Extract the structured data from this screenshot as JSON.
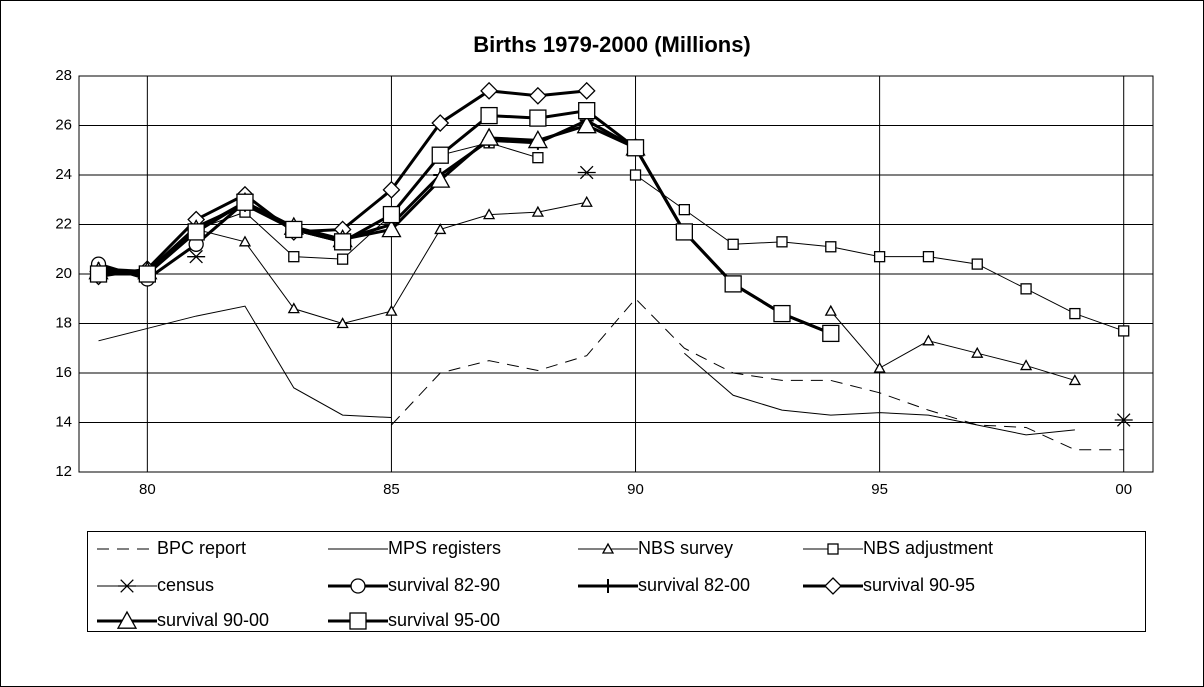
{
  "chart_data": {
    "type": "line",
    "title": "Births 1979-2000 (Millions)",
    "x": [
      1979,
      1980,
      1981,
      1982,
      1983,
      1984,
      1985,
      1986,
      1987,
      1988,
      1989,
      1990,
      1991,
      1992,
      1993,
      1994,
      1995,
      1996,
      1997,
      1998,
      1999,
      2000
    ],
    "xlim": [
      1978.6,
      2000.6
    ],
    "xticks": [
      {
        "value": 1980,
        "label": "80"
      },
      {
        "value": 1985,
        "label": "85"
      },
      {
        "value": 1990,
        "label": "90"
      },
      {
        "value": 1995,
        "label": "95"
      },
      {
        "value": 2000,
        "label": "00"
      }
    ],
    "ylim": [
      12,
      28
    ],
    "yticks": [
      12,
      14,
      16,
      18,
      20,
      22,
      24,
      26,
      28
    ],
    "grid": true,
    "series": [
      {
        "name": "BPC report",
        "color": "#000000",
        "dash": "12 8",
        "line_width": 1,
        "marker": "none",
        "marker_size": 0,
        "values": [
          null,
          null,
          null,
          null,
          null,
          null,
          13.9,
          16.0,
          16.5,
          16.1,
          16.7,
          19.0,
          17.0,
          16.0,
          15.7,
          15.7,
          15.2,
          14.5,
          13.9,
          13.8,
          12.9,
          12.9
        ]
      },
      {
        "name": "MPS registers",
        "color": "#000000",
        "dash": "none",
        "line_width": 1,
        "marker": "none",
        "marker_size": 0,
        "values": [
          17.3,
          17.8,
          18.3,
          18.7,
          15.4,
          14.3,
          14.2,
          null,
          null,
          null,
          null,
          null,
          16.8,
          15.1,
          14.5,
          14.3,
          14.4,
          14.3,
          13.9,
          13.5,
          13.7,
          null
        ]
      },
      {
        "name": "NBS survey",
        "color": "#000000",
        "dash": "none",
        "line_width": 1,
        "marker": "triangle",
        "marker_size": 5,
        "values": [
          20.0,
          20.0,
          21.8,
          21.3,
          18.6,
          18.0,
          18.5,
          21.8,
          22.4,
          22.5,
          22.9,
          null,
          null,
          null,
          null,
          18.5,
          16.2,
          17.3,
          16.8,
          16.3,
          15.7,
          null
        ]
      },
      {
        "name": "NBS adjustment",
        "color": "#000000",
        "dash": "none",
        "line_width": 1,
        "marker": "square",
        "marker_size": 5,
        "values": [
          20.0,
          20.0,
          21.8,
          22.5,
          20.7,
          20.6,
          22.4,
          24.8,
          25.3,
          24.7,
          null,
          24.0,
          22.6,
          21.2,
          21.3,
          21.1,
          20.7,
          20.7,
          20.4,
          19.4,
          18.4,
          17.7
        ]
      },
      {
        "name": "census",
        "color": "#000000",
        "dash": "none",
        "line_width": 1,
        "marker": "star",
        "marker_size": 9,
        "values": [
          20.1,
          null,
          20.7,
          null,
          null,
          null,
          null,
          null,
          null,
          null,
          24.1,
          null,
          null,
          null,
          null,
          null,
          null,
          null,
          null,
          null,
          null,
          14.1
        ]
      },
      {
        "name": "survival 82-90",
        "color": "#000000",
        "dash": "none",
        "line_width": 3,
        "marker": "circle",
        "marker_size": 7,
        "values": [
          20.4,
          19.8,
          21.2,
          22.9,
          21.8,
          21.3,
          null,
          null,
          null,
          null,
          null,
          null,
          null,
          null,
          null,
          null,
          null,
          null,
          null,
          null,
          null,
          null
        ]
      },
      {
        "name": "survival 82-00",
        "color": "#000000",
        "dash": "none",
        "line_width": 3,
        "marker": "plus",
        "marker_size": 7,
        "values": [
          20.2,
          20.1,
          21.9,
          22.8,
          21.8,
          21.4,
          22.0,
          24.0,
          25.4,
          25.3,
          26.2,
          25.1,
          21.7,
          19.6,
          18.4,
          17.6,
          null,
          null,
          null,
          null,
          null,
          null
        ]
      },
      {
        "name": "survival 90-95",
        "color": "#000000",
        "dash": "none",
        "line_width": 3,
        "marker": "diamond",
        "marker_size": 8,
        "values": [
          19.9,
          20.2,
          22.2,
          23.2,
          21.7,
          21.8,
          23.4,
          26.1,
          27.4,
          27.2,
          27.4,
          null,
          null,
          null,
          null,
          null,
          null,
          null,
          null,
          null,
          null,
          null
        ]
      },
      {
        "name": "survival 90-00",
        "color": "#000000",
        "dash": "none",
        "line_width": 3,
        "marker": "triangle",
        "marker_size": 9,
        "values": [
          20.1,
          20.1,
          21.8,
          22.9,
          21.9,
          21.4,
          21.8,
          23.8,
          25.5,
          25.4,
          26.0,
          25.1,
          null,
          null,
          null,
          null,
          null,
          null,
          null,
          null,
          null,
          null
        ]
      },
      {
        "name": "survival 95-00",
        "color": "#000000",
        "dash": "none",
        "line_width": 3,
        "marker": "square",
        "marker_size": 8,
        "values": [
          20.0,
          20.0,
          21.7,
          22.9,
          21.8,
          21.3,
          22.4,
          24.8,
          26.4,
          26.3,
          26.6,
          25.1,
          21.7,
          19.6,
          18.4,
          17.6,
          null,
          null,
          null,
          null,
          null,
          null
        ]
      }
    ]
  }
}
